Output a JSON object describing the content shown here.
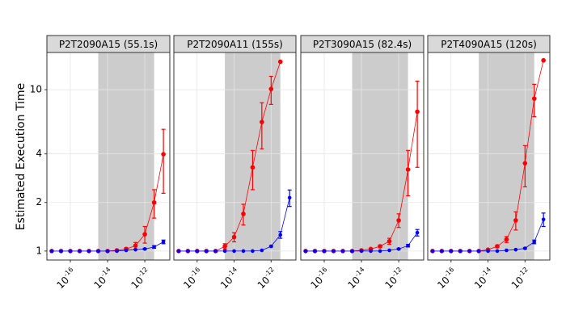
{
  "chart_data": [
    {
      "type": "line",
      "title": "P2T2090A15 (55.1s)",
      "ylabel": "Estimated Execution Time",
      "x": [
        1e-17,
        3.16e-17,
        1e-16,
        3.16e-16,
        1e-15,
        3.16e-15,
        1e-14,
        3.16e-14,
        1e-13,
        3.16e-13,
        1e-12,
        3.16e-12,
        1e-11
      ],
      "xlim": [
        5.5e-18,
        2.2e-11
      ],
      "xscale": "log",
      "xticks": [
        {
          "value": 1e-16,
          "label": "10",
          "exponent": "-16"
        },
        {
          "value": 1e-14,
          "label": "10",
          "exponent": "-14"
        },
        {
          "value": 1e-12,
          "label": "10",
          "exponent": "-12"
        }
      ],
      "ylim": [
        0.88,
        17
      ],
      "yscale": "log",
      "yticks": [
        1,
        2,
        4,
        10
      ],
      "grid": true,
      "shade": [
        3.16e-15,
        3.16e-12
      ],
      "shade_color": "#cccccc",
      "series": [
        {
          "color": "#ff0000",
          "values": [
            1,
            1,
            1,
            1,
            1,
            1,
            1,
            1.01,
            1.03,
            1.08,
            1.27,
            2.0,
            3.98
          ],
          "errors": [
            0,
            0,
            0,
            0,
            0,
            0,
            0,
            0.01,
            0.02,
            0.05,
            0.15,
            0.4,
            1.7
          ]
        },
        {
          "color": "#0000ff",
          "values": [
            1,
            1,
            1,
            1,
            1,
            1,
            1,
            1,
            1.01,
            1.02,
            1.03,
            1.06,
            1.14
          ],
          "errors": [
            0,
            0,
            0,
            0,
            0,
            0,
            0,
            0,
            0,
            0,
            0.01,
            0.02,
            0.03
          ]
        }
      ]
    },
    {
      "type": "line",
      "title": "P2T2090A11 (155s)",
      "x": [
        1e-17,
        3.16e-17,
        1e-16,
        3.16e-16,
        1e-15,
        3.16e-15,
        1e-14,
        3.16e-14,
        1e-13,
        3.16e-13,
        1e-12,
        3.16e-12,
        1e-11
      ],
      "xlim": [
        5.5e-18,
        2.2e-11
      ],
      "xscale": "log",
      "xticks": [
        {
          "value": 1e-16,
          "label": "10",
          "exponent": "-16"
        },
        {
          "value": 1e-14,
          "label": "10",
          "exponent": "-14"
        },
        {
          "value": 1e-12,
          "label": "10",
          "exponent": "-12"
        }
      ],
      "ylim": [
        0.88,
        17
      ],
      "yscale": "log",
      "yticks": [
        1,
        2,
        4,
        10
      ],
      "grid": true,
      "shade": [
        3.16e-15,
        3.16e-12
      ],
      "shade_color": "#cccccc",
      "series": [
        {
          "color": "#ff0000",
          "values": [
            1,
            1,
            1,
            1,
            1,
            1.07,
            1.22,
            1.7,
            3.3,
            6.3,
            10.1,
            14.9,
            null
          ],
          "errors": [
            0,
            0,
            0,
            0,
            0.01,
            0.04,
            0.08,
            0.25,
            0.9,
            2,
            2,
            0,
            null
          ]
        },
        {
          "color": "#0000ff",
          "values": [
            1,
            1,
            1,
            1,
            1,
            1,
            1,
            1,
            1,
            1.01,
            1.07,
            1.26,
            2.14
          ],
          "errors": [
            0,
            0,
            0,
            0,
            0,
            0,
            0,
            0,
            0,
            0,
            0.01,
            0.06,
            0.25
          ]
        }
      ]
    },
    {
      "type": "line",
      "title": "P2T3090A15 (82.4s)",
      "x": [
        1e-17,
        3.16e-17,
        1e-16,
        3.16e-16,
        1e-15,
        3.16e-15,
        1e-14,
        3.16e-14,
        1e-13,
        3.16e-13,
        1e-12,
        3.16e-12,
        1e-11
      ],
      "xlim": [
        5.5e-18,
        2.2e-11
      ],
      "xscale": "log",
      "xticks": [
        {
          "value": 1e-16,
          "label": "10",
          "exponent": "-16"
        },
        {
          "value": 1e-14,
          "label": "10",
          "exponent": "-14"
        },
        {
          "value": 1e-12,
          "label": "10",
          "exponent": "-12"
        }
      ],
      "ylim": [
        0.88,
        17
      ],
      "yscale": "log",
      "yticks": [
        1,
        2,
        4,
        10
      ],
      "grid": true,
      "shade": [
        3.16e-15,
        3.16e-12
      ],
      "shade_color": "#cccccc",
      "series": [
        {
          "color": "#ff0000",
          "values": [
            1,
            1,
            1,
            1,
            1,
            1,
            1.01,
            1.03,
            1.07,
            1.15,
            1.55,
            3.2,
            7.3
          ],
          "errors": [
            0,
            0,
            0,
            0,
            0,
            0,
            0,
            0.01,
            0.02,
            0.05,
            0.15,
            1.0,
            4
          ]
        },
        {
          "color": "#0000ff",
          "values": [
            1,
            1,
            1,
            1,
            1,
            1,
            1,
            1,
            1,
            1.01,
            1.03,
            1.08,
            1.3
          ],
          "errors": [
            0,
            0,
            0,
            0,
            0,
            0,
            0,
            0,
            0,
            0,
            0.01,
            0.02,
            0.06
          ]
        }
      ]
    },
    {
      "type": "line",
      "title": "P2T4090A15 (120s)",
      "x": [
        1e-17,
        3.16e-17,
        1e-16,
        3.16e-16,
        1e-15,
        3.16e-15,
        1e-14,
        3.16e-14,
        1e-13,
        3.16e-13,
        1e-12,
        3.16e-12,
        1e-11
      ],
      "xlim": [
        5.5e-18,
        2.2e-11
      ],
      "xscale": "log",
      "xticks": [
        {
          "value": 1e-16,
          "label": "10",
          "exponent": "-16"
        },
        {
          "value": 1e-14,
          "label": "10",
          "exponent": "-14"
        },
        {
          "value": 1e-12,
          "label": "10",
          "exponent": "-12"
        }
      ],
      "ylim": [
        0.88,
        17
      ],
      "yscale": "log",
      "yticks": [
        1,
        2,
        4,
        10
      ],
      "grid": true,
      "shade": [
        3.16e-15,
        3.16e-12
      ],
      "shade_color": "#cccccc",
      "series": [
        {
          "color": "#ff0000",
          "values": [
            1,
            1,
            1,
            1,
            1,
            1,
            1.02,
            1.07,
            1.18,
            1.55,
            3.5,
            8.8,
            15.2
          ],
          "errors": [
            0,
            0,
            0,
            0,
            0,
            0,
            0.01,
            0.02,
            0.05,
            0.2,
            1.0,
            2,
            0
          ]
        },
        {
          "color": "#0000ff",
          "values": [
            1,
            1,
            1,
            1,
            1,
            1,
            1,
            1,
            1.01,
            1.02,
            1.04,
            1.14,
            1.57
          ],
          "errors": [
            0,
            0,
            0,
            0,
            0,
            0,
            0,
            0,
            0,
            0,
            0.01,
            0.03,
            0.15
          ]
        }
      ]
    }
  ]
}
